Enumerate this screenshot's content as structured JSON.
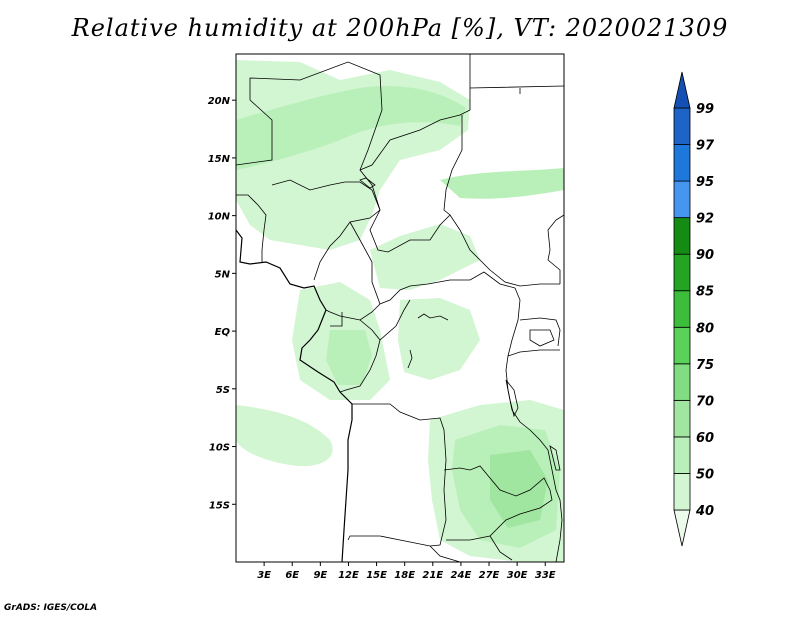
{
  "title": "Relative humidity at 200hPa [%], VT: 2020021309",
  "credit": "GrADS: IGES/COLA",
  "map": {
    "lon_range": [
      0,
      35
    ],
    "lat_range": [
      -20,
      24
    ],
    "lat_ticks": [
      {
        "value": 20,
        "label": "20N"
      },
      {
        "value": 15,
        "label": "15N"
      },
      {
        "value": 10,
        "label": "10N"
      },
      {
        "value": 5,
        "label": "5N"
      },
      {
        "value": 0,
        "label": "EQ"
      },
      {
        "value": -5,
        "label": "5S"
      },
      {
        "value": -10,
        "label": "10S"
      },
      {
        "value": -15,
        "label": "15S"
      }
    ],
    "lon_ticks": [
      {
        "value": 3,
        "label": "3E"
      },
      {
        "value": 6,
        "label": "6E"
      },
      {
        "value": 9,
        "label": "9E"
      },
      {
        "value": 12,
        "label": "12E"
      },
      {
        "value": 15,
        "label": "15E"
      },
      {
        "value": 18,
        "label": "18E"
      },
      {
        "value": 21,
        "label": "21E"
      },
      {
        "value": 24,
        "label": "24E"
      },
      {
        "value": 27,
        "label": "27E"
      },
      {
        "value": 30,
        "label": "30E"
      },
      {
        "value": 33,
        "label": "33E"
      }
    ]
  },
  "colorbar": {
    "levels": [
      "40",
      "50",
      "60",
      "70",
      "75",
      "80",
      "85",
      "90",
      "92",
      "95",
      "97",
      "99"
    ],
    "colors": [
      "#ebfaeb",
      "#d2f5d2",
      "#b9f0b9",
      "#a0e6a0",
      "#82dc82",
      "#5ad25a",
      "#3cbe3c",
      "#23a523",
      "#148c14",
      "#4696f0",
      "#1e78dc",
      "#1e64c8",
      "#1450b4"
    ]
  },
  "humidity_regions": [
    {
      "name": "northwest-sahel",
      "level": "40"
    },
    {
      "name": "northwest-band",
      "level": "50"
    },
    {
      "name": "northeast-sudan-band",
      "level": "50"
    },
    {
      "name": "central-african-republic",
      "level": "40"
    },
    {
      "name": "cameroon-gabon",
      "level": "40"
    },
    {
      "name": "gabon-congo-core",
      "level": "50"
    },
    {
      "name": "congo-basin",
      "level": "40"
    },
    {
      "name": "angola-atlantic",
      "level": "40"
    },
    {
      "name": "southeast-zambia",
      "level": "40"
    },
    {
      "name": "southeast-core",
      "level": "50"
    },
    {
      "name": "southeast-inner",
      "level": "60"
    }
  ]
}
